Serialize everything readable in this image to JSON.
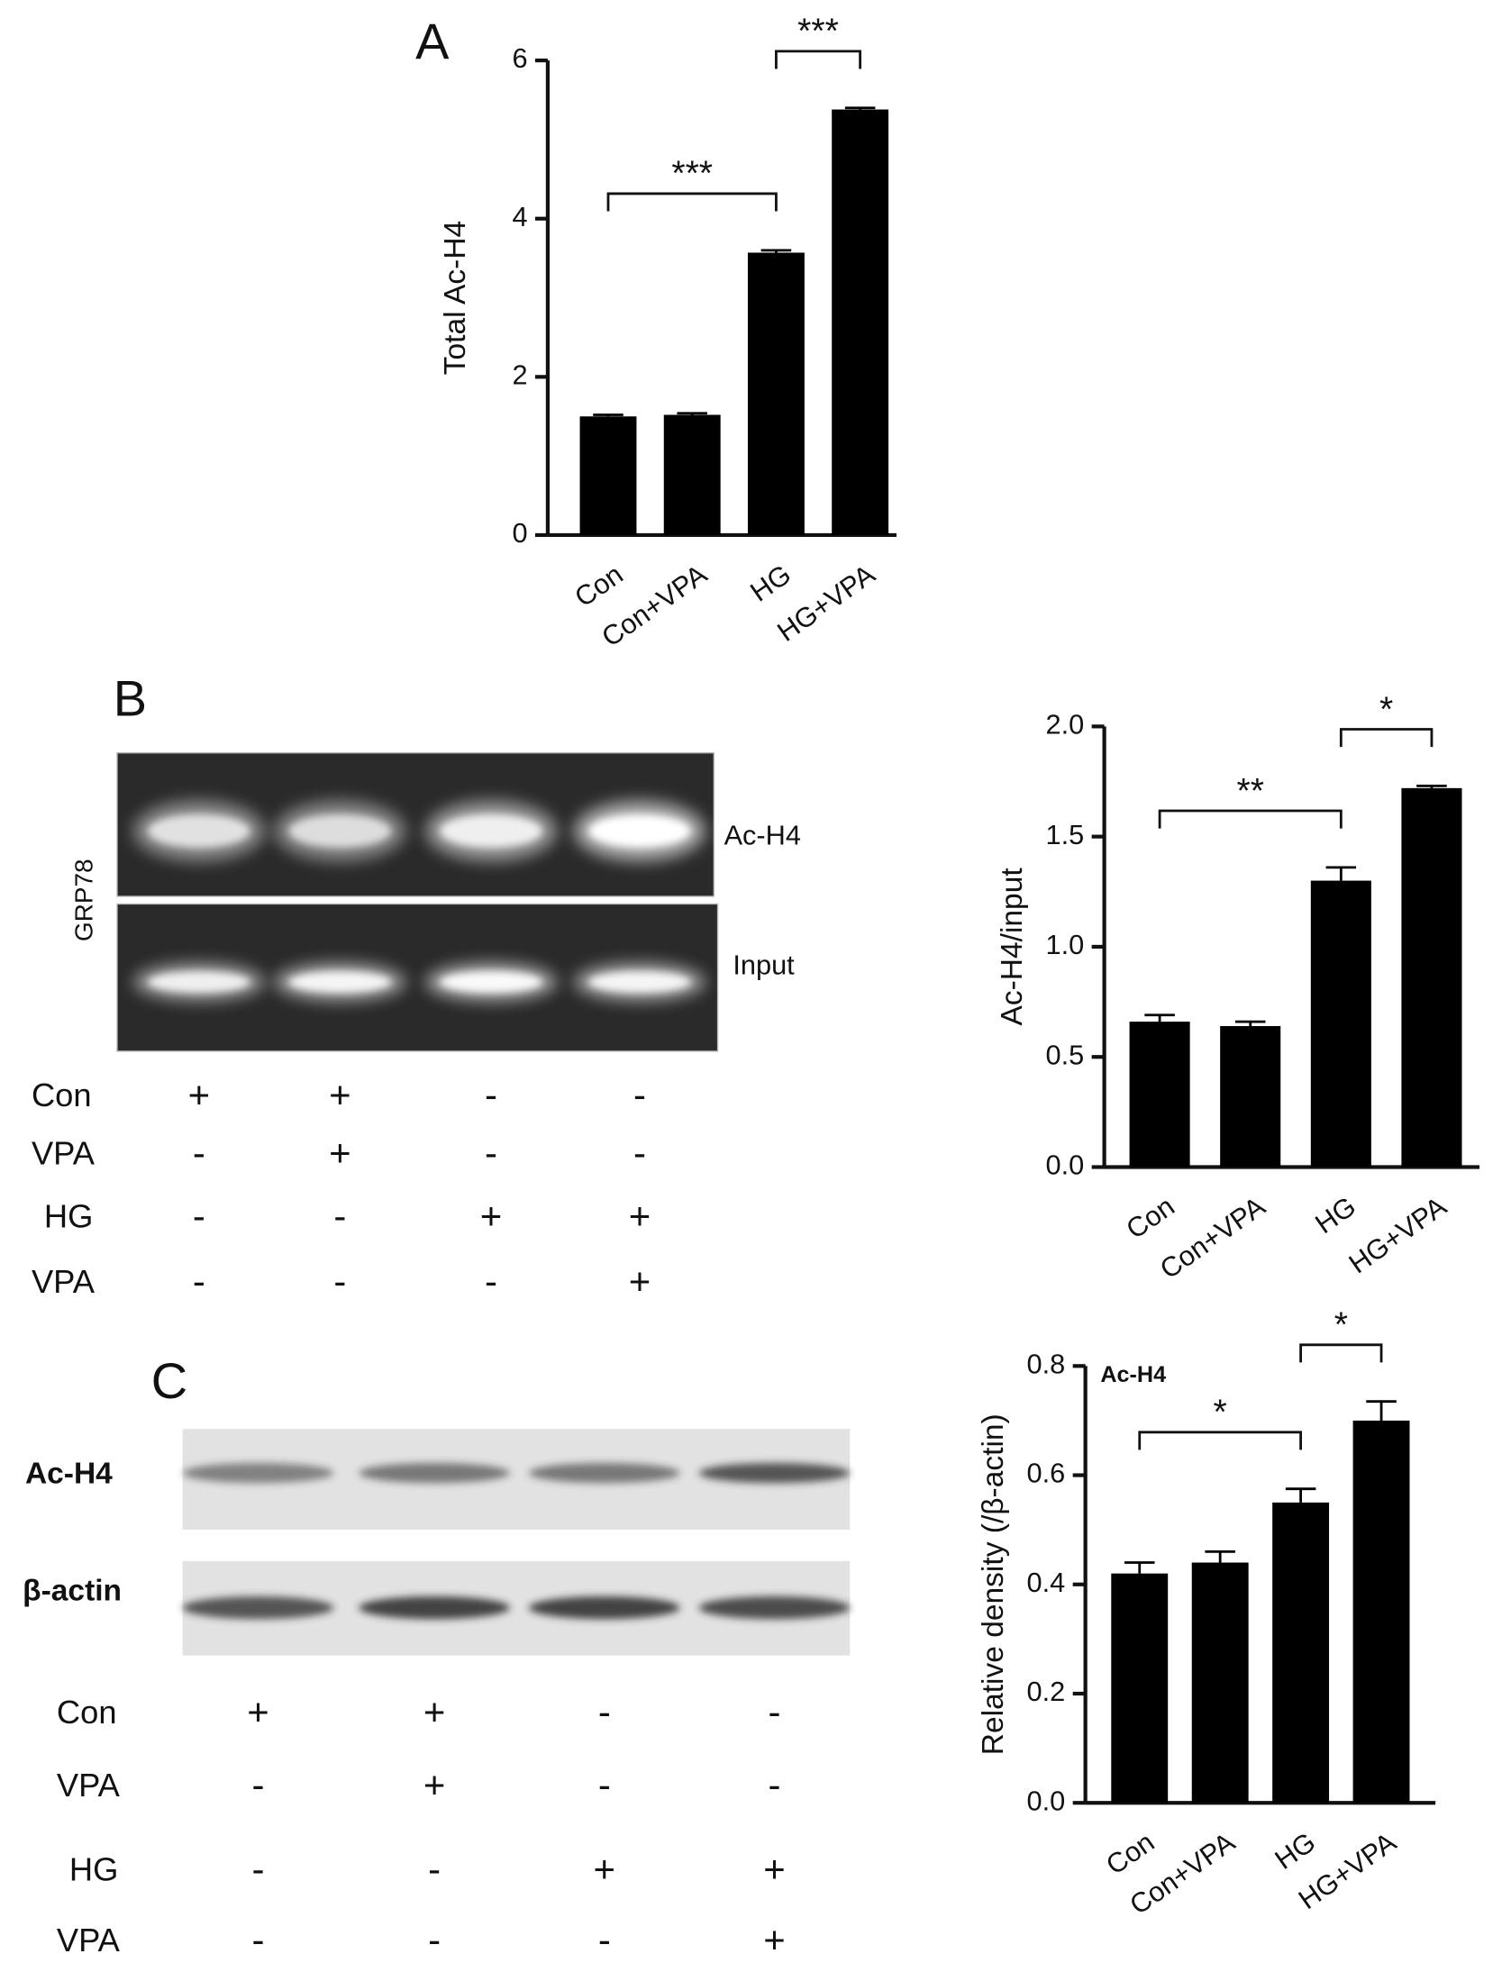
{
  "chart_data": [
    {
      "type": "bar",
      "panel": "A",
      "ylabel": "Total Ac-H4",
      "categories": [
        "Con",
        "Con+VPA",
        "HG",
        "HG+VPA"
      ],
      "values": [
        1.5,
        1.52,
        3.57,
        5.38
      ],
      "errors": [
        0.02,
        0.02,
        0.03,
        0.02
      ],
      "color": "#000000",
      "ylim": [
        0,
        6
      ],
      "yticks": [
        0,
        2,
        4,
        6
      ],
      "significance": [
        {
          "text": "***",
          "between": [
            "Con",
            "HG"
          ]
        },
        {
          "text": "***",
          "between": [
            "HG",
            "HG+VPA"
          ]
        }
      ]
    },
    {
      "type": "bar",
      "ylabel": "Ac-H4/input",
      "categories": [
        "Con",
        "Con+VPA",
        "HG",
        "HG+VPA"
      ],
      "values": [
        0.66,
        0.64,
        1.3,
        1.72
      ],
      "errors": [
        0.03,
        0.02,
        0.06,
        0.01
      ],
      "color": "#000000",
      "ylim": [
        0,
        2
      ],
      "yticks": [
        {
          "value": 0,
          "label": "0.0"
        },
        0.5,
        {
          "value": 1,
          "label": "1.0"
        },
        1.5,
        {
          "value": 2,
          "label": "2.0"
        }
      ],
      "significance": [
        {
          "text": "**",
          "between": [
            "Con",
            "HG"
          ]
        },
        {
          "text": "*",
          "between": [
            "HG",
            "HG+VPA"
          ]
        }
      ]
    },
    {
      "type": "bar",
      "ylabel": "Relative density (/β-actin)",
      "inner_label": "Ac-H4",
      "categories": [
        "Con",
        "Con+VPA",
        "HG",
        "HG+VPA"
      ],
      "values": [
        0.42,
        0.44,
        0.55,
        0.7
      ],
      "errors": [
        0.02,
        0.02,
        0.025,
        0.035
      ],
      "color": "#000000",
      "ylim": [
        0,
        0.8
      ],
      "yticks": [
        {
          "value": 0,
          "label": "0.0"
        },
        0.2,
        0.4,
        0.6,
        0.8
      ],
      "significance": [
        {
          "text": "*",
          "between": [
            "Con",
            "HG"
          ]
        },
        {
          "text": "*",
          "between": [
            "HG",
            "HG+VPA"
          ]
        }
      ]
    }
  ],
  "blots": [
    {
      "panel": "B",
      "side_label": "GRP78",
      "bands": [
        "Ac-H4",
        "Input"
      ],
      "conditions": [
        {
          "label": "Con",
          "signs": [
            "+",
            "+",
            "-",
            "-"
          ]
        },
        {
          "label": "VPA",
          "signs": [
            "-",
            "+",
            "-",
            "-"
          ]
        },
        {
          "label": "HG",
          "signs": [
            "-",
            "-",
            "+",
            "+"
          ]
        },
        {
          "label": "VPA",
          "signs": [
            "-",
            "-",
            "-",
            "+"
          ]
        }
      ]
    },
    {
      "panel": "C",
      "bands": [
        "Ac-H4",
        "β-actin"
      ],
      "conditions": [
        {
          "label": "Con",
          "signs": [
            "+",
            "+",
            "-",
            "-"
          ]
        },
        {
          "label": "VPA",
          "signs": [
            "-",
            "+",
            "-",
            "-"
          ]
        },
        {
          "label": "HG",
          "signs": [
            "-",
            "-",
            "+",
            "+"
          ]
        },
        {
          "label": "VPA",
          "signs": [
            "-",
            "-",
            "-",
            "+"
          ]
        }
      ]
    }
  ]
}
